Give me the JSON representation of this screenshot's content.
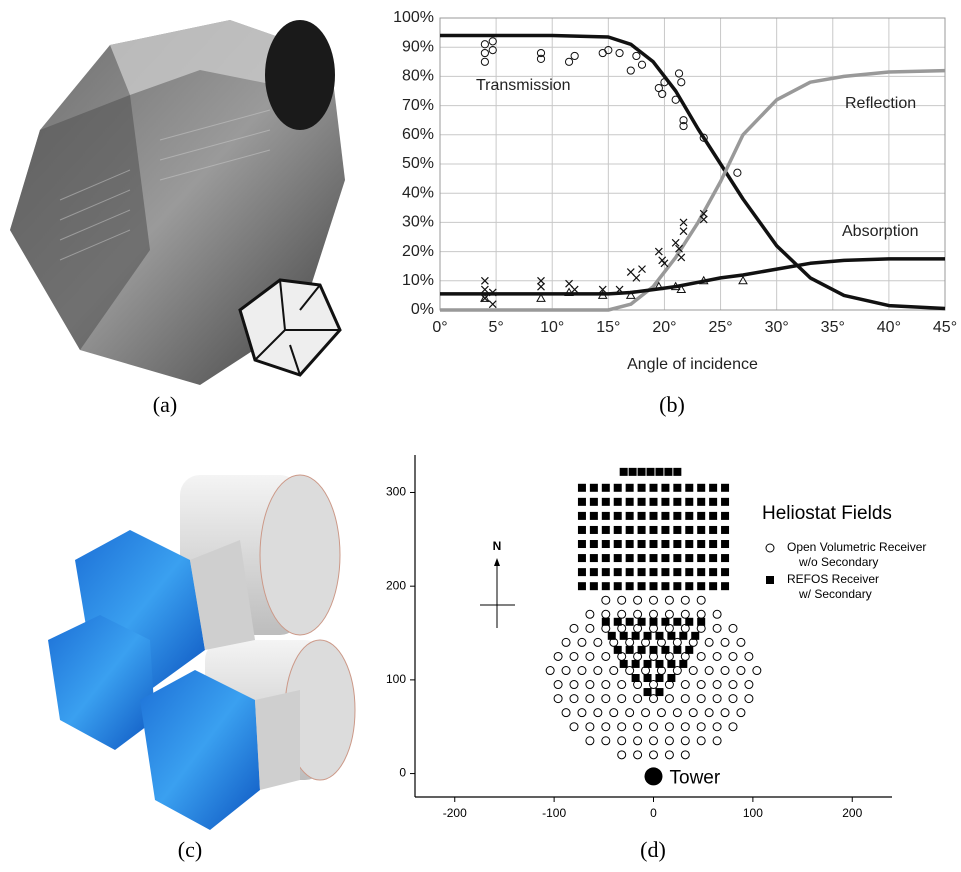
{
  "captions": [
    "(a)",
    "(b)",
    "(c)",
    "(d)"
  ],
  "chart_data": [
    {
      "type": "line",
      "xlabel": "Angle of incidence",
      "xlim": [
        0,
        45
      ],
      "xticks": [
        {
          "value": 0,
          "label": "0°"
        },
        {
          "value": 5,
          "label": "5°"
        },
        {
          "value": 10,
          "label": "10°"
        },
        {
          "value": 15,
          "label": "15°"
        },
        {
          "value": 20,
          "label": "20°"
        },
        {
          "value": 25,
          "label": "25°"
        },
        {
          "value": 30,
          "label": "30°"
        },
        {
          "value": 35,
          "label": "35°"
        },
        {
          "value": 40,
          "label": "40°"
        },
        {
          "value": 45,
          "label": "45°"
        }
      ],
      "ylim": [
        0,
        100
      ],
      "yticks": [
        {
          "value": 0,
          "label": "0%"
        },
        {
          "value": 10,
          "label": "10%"
        },
        {
          "value": 20,
          "label": "20%"
        },
        {
          "value": 30,
          "label": "30%"
        },
        {
          "value": 40,
          "label": "40%"
        },
        {
          "value": 50,
          "label": "50%"
        },
        {
          "value": 60,
          "label": "60%"
        },
        {
          "value": 70,
          "label": "70%"
        },
        {
          "value": 80,
          "label": "80%"
        },
        {
          "value": 90,
          "label": "90%"
        },
        {
          "value": 100,
          "label": "100%"
        }
      ],
      "grid": true,
      "series": [
        {
          "name": "Transmission",
          "color": "#111111",
          "x": [
            0,
            5,
            10,
            15,
            17,
            19,
            21,
            23,
            25,
            27,
            30,
            33,
            36,
            40,
            45
          ],
          "values": [
            94,
            94,
            94,
            93.5,
            91,
            85,
            75,
            62,
            50,
            38,
            22,
            11,
            5,
            1.5,
            0.5
          ]
        },
        {
          "name": "Reflection",
          "color": "#999999",
          "x": [
            0,
            5,
            10,
            15,
            17,
            19,
            21,
            23,
            25,
            27,
            30,
            33,
            36,
            40,
            45
          ],
          "values": [
            0,
            0,
            0,
            0,
            2,
            8,
            18,
            30,
            44,
            60,
            72,
            78,
            80,
            81.5,
            82
          ]
        },
        {
          "name": "Absorption",
          "color": "#111111",
          "x": [
            0,
            5,
            10,
            15,
            17,
            19,
            21,
            23,
            25,
            27,
            30,
            33,
            36,
            40,
            45
          ],
          "values": [
            5.5,
            5.5,
            5.5,
            5.5,
            6,
            7,
            8,
            9.5,
            11,
            12,
            14,
            16,
            17,
            17.5,
            17.5
          ]
        },
        {
          "marker": "circle",
          "color": "#111111",
          "x": [
            4,
            4,
            4,
            4.7,
            4.7,
            9,
            9,
            11.5,
            12,
            14.5,
            15,
            16,
            17,
            17.5,
            18,
            19.5,
            19.8,
            20,
            21,
            21.3,
            21.5,
            21.7,
            21.7,
            23.5,
            26.5
          ],
          "values": [
            85,
            88,
            91,
            92,
            89,
            86,
            88,
            85,
            87,
            88,
            89,
            88,
            82,
            87,
            84,
            76,
            74,
            78,
            72,
            81,
            78,
            65,
            63,
            59,
            47
          ]
        },
        {
          "marker": "cross",
          "color": "#111111",
          "x": [
            4,
            4,
            4,
            4.7,
            4.7,
            9,
            9,
            11.5,
            12,
            14.5,
            16,
            17,
            17.5,
            18,
            19.5,
            19.8,
            20,
            21,
            21.3,
            21.5,
            21.7,
            21.7,
            23.5,
            23.5
          ],
          "values": [
            10,
            7,
            4,
            2,
            6,
            10,
            8,
            9,
            7,
            7,
            7,
            13,
            11,
            14,
            20,
            17,
            16,
            23,
            21,
            18,
            30,
            27,
            33,
            31
          ]
        },
        {
          "marker": "triangle",
          "color": "#111111",
          "x": [
            4,
            9,
            11.5,
            14.5,
            17,
            19.5,
            21,
            21.5,
            23.5,
            27
          ],
          "values": [
            4,
            4,
            6,
            5,
            5,
            8,
            8,
            7,
            10,
            10
          ]
        }
      ]
    },
    {
      "type": "scatter",
      "legend_title": "Heliostat Fields",
      "north_label": "N",
      "xlim": [
        -240,
        240
      ],
      "xticks": [
        -200,
        -100,
        0,
        100,
        200
      ],
      "ylim": [
        -25,
        340
      ],
      "yticks": [
        0,
        100,
        200,
        300
      ],
      "tower": {
        "x": 0,
        "y": -3,
        "label": "Tower"
      },
      "series": [
        {
          "name": "Open Volumetric Receiver\nw/o Secondary",
          "marker": "circle-open",
          "color": "#000000",
          "x": [
            -32,
            -16,
            0,
            16,
            32,
            -64,
            -48,
            -32,
            -16,
            0,
            16,
            32,
            48,
            64,
            -80,
            -64,
            -48,
            -32,
            -16,
            0,
            16,
            32,
            48,
            64,
            80,
            -88,
            -72,
            -56,
            -40,
            -24,
            -8,
            8,
            24,
            40,
            56,
            72,
            88,
            -96,
            -80,
            -64,
            -48,
            -32,
            -16,
            0,
            16,
            32,
            48,
            64,
            80,
            96,
            -96,
            -80,
            -64,
            -48,
            -32,
            -16,
            0,
            16,
            32,
            48,
            64,
            80,
            96,
            -104,
            -88,
            -72,
            -56,
            -40,
            -24,
            -8,
            8,
            24,
            40,
            56,
            72,
            88,
            104,
            -96,
            -80,
            -64,
            -48,
            -32,
            -16,
            0,
            16,
            32,
            48,
            64,
            80,
            96,
            -88,
            -72,
            -56,
            -40,
            -24,
            -8,
            8,
            24,
            40,
            56,
            72,
            88,
            -80,
            -64,
            -48,
            -32,
            -16,
            0,
            16,
            32,
            48,
            64,
            80,
            -64,
            -48,
            -32,
            -16,
            0,
            16,
            32,
            48,
            64,
            -48,
            -32,
            -16,
            0,
            16,
            32,
            48
          ],
          "values": [
            20,
            20,
            20,
            20,
            20,
            35,
            35,
            35,
            35,
            35,
            35,
            35,
            35,
            35,
            50,
            50,
            50,
            50,
            50,
            50,
            50,
            50,
            50,
            50,
            50,
            65,
            65,
            65,
            65,
            65,
            65,
            65,
            65,
            65,
            65,
            65,
            65,
            80,
            80,
            80,
            80,
            80,
            80,
            80,
            80,
            80,
            80,
            80,
            80,
            80,
            95,
            95,
            95,
            95,
            95,
            95,
            95,
            95,
            95,
            95,
            95,
            95,
            95,
            110,
            110,
            110,
            110,
            110,
            110,
            110,
            110,
            110,
            110,
            110,
            110,
            110,
            110,
            125,
            125,
            125,
            125,
            125,
            125,
            125,
            125,
            125,
            125,
            125,
            125,
            125,
            140,
            140,
            140,
            140,
            140,
            140,
            140,
            140,
            140,
            140,
            140,
            140,
            155,
            155,
            155,
            155,
            155,
            155,
            155,
            155,
            155,
            155,
            155,
            170,
            170,
            170,
            170,
            170,
            170,
            170,
            170,
            170,
            185,
            185,
            185,
            185,
            185,
            185,
            185
          ]
        },
        {
          "name": "REFOS Receiver\nw/ Secondary",
          "marker": "square",
          "color": "#000000",
          "x": [
            -30,
            -21,
            -12,
            -3,
            6,
            15,
            24,
            -72,
            -60,
            -48,
            -36,
            -24,
            -12,
            0,
            12,
            24,
            36,
            48,
            60,
            72,
            -72,
            -60,
            -48,
            -36,
            -24,
            -12,
            0,
            12,
            24,
            36,
            48,
            60,
            72,
            -72,
            -60,
            -48,
            -36,
            -24,
            -12,
            0,
            12,
            24,
            36,
            48,
            60,
            72,
            -72,
            -60,
            -48,
            -36,
            -24,
            -12,
            0,
            12,
            24,
            36,
            48,
            60,
            72,
            -72,
            -60,
            -48,
            -36,
            -24,
            -12,
            0,
            12,
            24,
            36,
            48,
            60,
            72,
            -72,
            -60,
            -48,
            -36,
            -24,
            -12,
            0,
            12,
            24,
            36,
            48,
            60,
            72,
            -72,
            -60,
            -48,
            -36,
            -24,
            -12,
            0,
            12,
            24,
            36,
            48,
            60,
            72,
            -72,
            -60,
            -48,
            -36,
            -24,
            -12,
            0,
            12,
            24,
            36,
            48,
            60,
            72,
            -48,
            -36,
            -24,
            -12,
            0,
            12,
            24,
            36,
            48,
            -42,
            -30,
            -18,
            -6,
            6,
            18,
            30,
            42,
            -36,
            -24,
            -12,
            0,
            12,
            24,
            36,
            -30,
            -18,
            -6,
            6,
            18,
            30,
            -18,
            -6,
            6,
            18,
            -6,
            6
          ],
          "values": [
            322,
            322,
            322,
            322,
            322,
            322,
            322,
            305,
            305,
            305,
            305,
            305,
            305,
            305,
            305,
            305,
            305,
            305,
            305,
            305,
            290,
            290,
            290,
            290,
            290,
            290,
            290,
            290,
            290,
            290,
            290,
            290,
            290,
            275,
            275,
            275,
            275,
            275,
            275,
            275,
            275,
            275,
            275,
            275,
            275,
            275,
            260,
            260,
            260,
            260,
            260,
            260,
            260,
            260,
            260,
            260,
            260,
            260,
            260,
            245,
            245,
            245,
            245,
            245,
            245,
            245,
            245,
            245,
            245,
            245,
            245,
            245,
            230,
            230,
            230,
            230,
            230,
            230,
            230,
            230,
            230,
            230,
            230,
            230,
            230,
            215,
            215,
            215,
            215,
            215,
            215,
            215,
            215,
            215,
            215,
            215,
            215,
            215,
            200,
            200,
            200,
            200,
            200,
            200,
            200,
            200,
            200,
            200,
            200,
            200,
            200,
            162,
            162,
            162,
            162,
            162,
            162,
            162,
            162,
            162,
            147,
            147,
            147,
            147,
            147,
            147,
            147,
            147,
            132,
            132,
            132,
            132,
            132,
            132,
            132,
            117,
            117,
            117,
            117,
            117,
            117,
            102,
            102,
            102,
            102,
            87,
            87
          ]
        }
      ]
    }
  ]
}
